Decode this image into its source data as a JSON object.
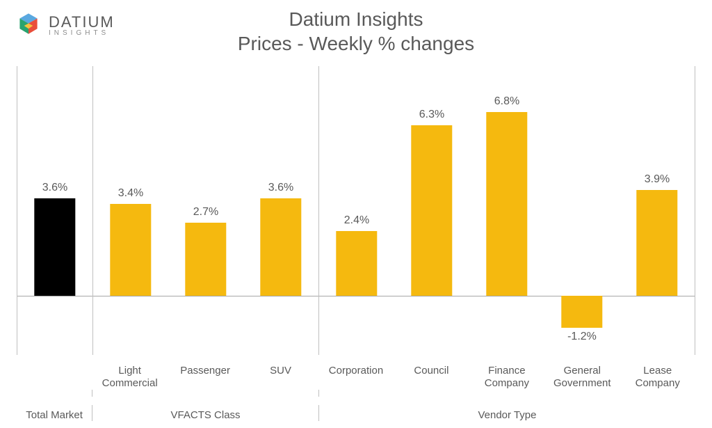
{
  "logo": {
    "brand_line1": "DATIUM",
    "brand_line2": "INSIGHTS"
  },
  "chart": {
    "type": "bar",
    "title_line1": "Datium Insights",
    "title_line2": "Prices - Weekly % changes",
    "title_fontsize": 28,
    "background_color": "#ffffff",
    "axis_line_color": "#a6a6a6",
    "separator_color": "#bfbfbf",
    "text_color": "#595959",
    "label_fontsize": 15,
    "value_fontsize": 16,
    "bar_width_ratio": 0.55,
    "y_range": {
      "min": -2.2,
      "max": 8.5
    },
    "groups": [
      {
        "name": "Total Market",
        "bars": [
          {
            "category": "",
            "value": 3.6,
            "label": "3.6%",
            "color": "#000000"
          }
        ]
      },
      {
        "name": "VFACTS Class",
        "bars": [
          {
            "category": "Light\nCommercial",
            "value": 3.4,
            "label": "3.4%",
            "color": "#f5b90f"
          },
          {
            "category": "Passenger",
            "value": 2.7,
            "label": "2.7%",
            "color": "#f5b90f"
          },
          {
            "category": "SUV",
            "value": 3.6,
            "label": "3.6%",
            "color": "#f5b90f"
          }
        ]
      },
      {
        "name": "Vendor Type",
        "bars": [
          {
            "category": "Corporation",
            "value": 2.4,
            "label": "2.4%",
            "color": "#f5b90f"
          },
          {
            "category": "Council",
            "value": 6.3,
            "label": "6.3%",
            "color": "#f5b90f"
          },
          {
            "category": "Finance\nCompany",
            "value": 6.8,
            "label": "6.8%",
            "color": "#f5b90f"
          },
          {
            "category": "General\nGovernment",
            "value": -1.2,
            "label": "-1.2%",
            "color": "#f5b90f"
          },
          {
            "category": "Lease\nCompany",
            "value": 3.9,
            "label": "3.9%",
            "color": "#f5b90f"
          }
        ]
      }
    ]
  }
}
